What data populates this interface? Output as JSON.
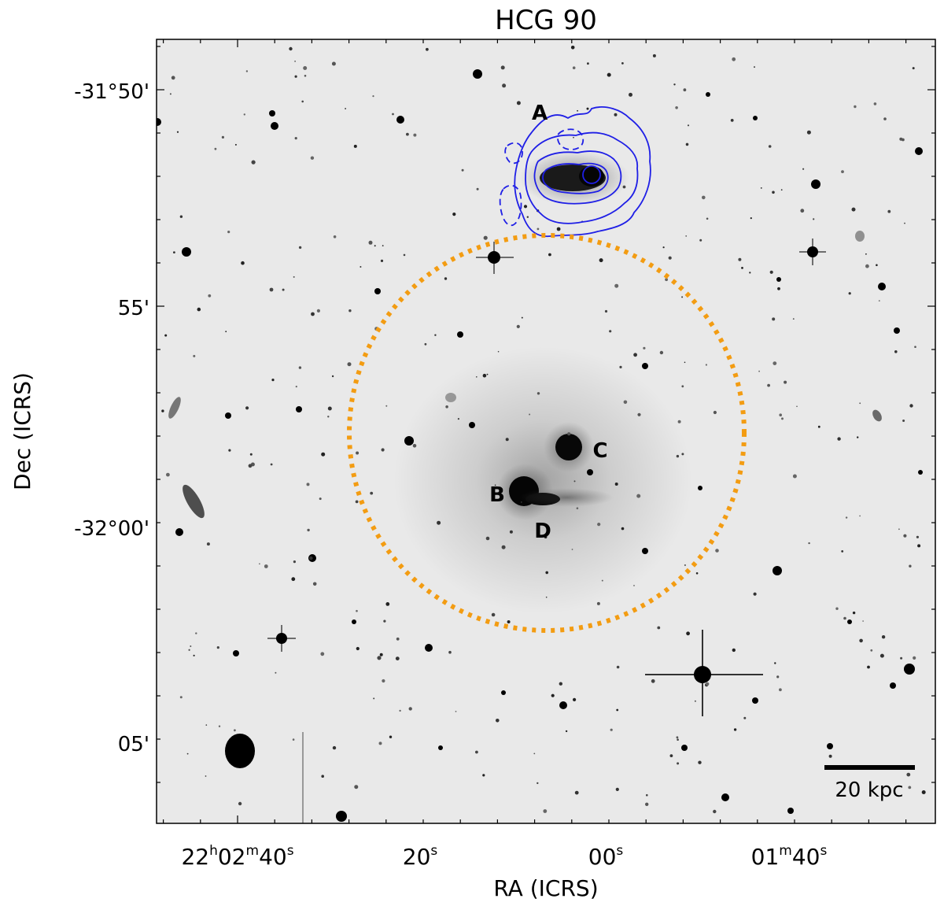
{
  "title": "HCG 90",
  "axes": {
    "xlabel": "RA (ICRS)",
    "ylabel": "Dec (ICRS)",
    "y_ticks": [
      {
        "text": "-31°50'",
        "key": "y0"
      },
      {
        "text": "55'",
        "key": "y1"
      },
      {
        "text": "-32°00'",
        "key": "y2"
      },
      {
        "text": "05'",
        "key": "y3"
      }
    ],
    "x_ticks": [
      {
        "main": "22",
        "h": "h",
        "mid": "02",
        "m": "m",
        "sec": "40",
        "s": "s"
      },
      {
        "main": "20",
        "s": "s"
      },
      {
        "main": "00",
        "s": "s"
      },
      {
        "main": "01",
        "m": "m",
        "sec": "40",
        "s": "s"
      }
    ]
  },
  "galaxy_labels": {
    "a": "A",
    "b": "B",
    "c": "C",
    "d": "D"
  },
  "scale_bar": {
    "label": "20 kpc"
  },
  "colors": {
    "contour": "#1f1fe6",
    "circle": "#f39c12",
    "background": "#e9e9e9"
  }
}
